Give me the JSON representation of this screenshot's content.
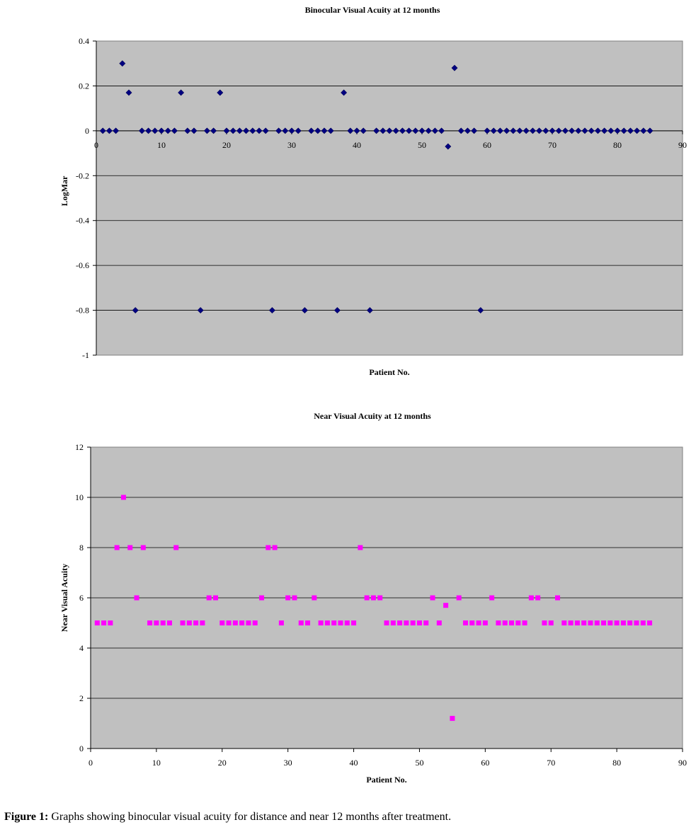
{
  "chart_data": [
    {
      "type": "scatter",
      "title": "Binocular Visual Acuity at 12 months",
      "xlabel": "Patient No.",
      "ylabel": "LogMar",
      "xlim": [
        0,
        90
      ],
      "ylim": [
        -1,
        0.4
      ],
      "xticks": [
        0,
        10,
        20,
        30,
        40,
        50,
        60,
        70,
        80,
        90
      ],
      "yticks": [
        0.4,
        0.2,
        0,
        -0.2,
        -0.4,
        -0.6,
        -0.8,
        -1
      ],
      "xtick_labels": [
        "0",
        "10",
        "20",
        "30",
        "40",
        "50",
        "60",
        "70",
        "80",
        "90"
      ],
      "ytick_labels": [
        "0.4",
        "0.2",
        "0",
        "-0.2",
        "-0.4",
        "-0.6",
        "-0.8",
        "-1"
      ],
      "grid": true,
      "marker": "diamond",
      "color": "#000080",
      "background": "#c0c0c0",
      "x": [
        1,
        2,
        3,
        4,
        5,
        6,
        7,
        8,
        9,
        10,
        11,
        12,
        13,
        14,
        15,
        16,
        17,
        18,
        19,
        20,
        21,
        22,
        23,
        24,
        25,
        26,
        27,
        28,
        29,
        30,
        31,
        32,
        33,
        34,
        35,
        36,
        37,
        38,
        39,
        40,
        41,
        42,
        43,
        44,
        45,
        46,
        47,
        48,
        49,
        50,
        51,
        52,
        53,
        54,
        55,
        56,
        57,
        58,
        59,
        60,
        61,
        62,
        63,
        64,
        65,
        66,
        67,
        68,
        69,
        70,
        71,
        72,
        73,
        74,
        75,
        76,
        77,
        78,
        79,
        80,
        81,
        82,
        83,
        84,
        85
      ],
      "y": [
        0,
        0,
        0,
        0.3,
        0.17,
        -0.8,
        0,
        0,
        0,
        0,
        0,
        0,
        0.17,
        0,
        0,
        -0.8,
        0,
        0,
        0.17,
        0,
        0,
        0,
        0,
        0,
        0,
        0,
        -0.8,
        0,
        0,
        0,
        0,
        -0.8,
        0,
        0,
        0,
        0,
        -0.8,
        0.17,
        0,
        0,
        0,
        -0.8,
        0,
        0,
        0,
        0,
        0,
        0,
        0,
        0,
        0,
        0,
        0,
        -0.07,
        0.28,
        0,
        0,
        0,
        -0.8,
        0,
        0,
        0,
        0,
        0,
        0,
        0,
        0,
        0,
        0,
        0,
        0,
        0,
        0,
        0,
        0,
        0,
        0,
        0,
        0,
        0,
        0,
        0,
        0,
        0,
        0
      ]
    },
    {
      "type": "scatter",
      "title": "Near Visual Acuity at 12 months",
      "xlabel": "Patient No.",
      "ylabel": "Near Visual Acuity",
      "xlim": [
        0,
        90
      ],
      "ylim": [
        0,
        12
      ],
      "xticks": [
        0,
        10,
        20,
        30,
        40,
        50,
        60,
        70,
        80,
        90
      ],
      "yticks": [
        12,
        10,
        8,
        6,
        4,
        2,
        0
      ],
      "xtick_labels": [
        "0",
        "10",
        "20",
        "30",
        "40",
        "50",
        "60",
        "70",
        "80",
        "90"
      ],
      "ytick_labels": [
        "12",
        "10",
        "8",
        "6",
        "4",
        "2",
        "0"
      ],
      "grid": true,
      "marker": "square",
      "color": "#ff00ff",
      "background": "#c0c0c0",
      "x": [
        1,
        2,
        3,
        4,
        5,
        6,
        7,
        8,
        9,
        10,
        11,
        12,
        13,
        14,
        15,
        16,
        17,
        18,
        19,
        20,
        21,
        22,
        23,
        24,
        25,
        26,
        27,
        28,
        29,
        30,
        31,
        32,
        33,
        34,
        35,
        36,
        37,
        38,
        39,
        40,
        41,
        42,
        43,
        44,
        45,
        46,
        47,
        48,
        49,
        50,
        51,
        52,
        53,
        54,
        55,
        56,
        57,
        58,
        59,
        60,
        61,
        62,
        63,
        64,
        65,
        66,
        67,
        68,
        69,
        70,
        71,
        72,
        73,
        74,
        75,
        76,
        77,
        78,
        79,
        80,
        81,
        82,
        83,
        84,
        85
      ],
      "y": [
        5,
        5,
        5,
        8,
        10,
        8,
        6,
        8,
        5,
        5,
        5,
        5,
        8,
        5,
        5,
        5,
        5,
        6,
        6,
        5,
        5,
        5,
        5,
        5,
        5,
        6,
        8,
        8,
        5,
        6,
        6,
        5,
        5,
        6,
        5,
        5,
        5,
        5,
        5,
        5,
        8,
        6,
        6,
        6,
        5,
        5,
        5,
        5,
        5,
        5,
        5,
        6,
        5,
        5.7,
        1.2,
        6,
        5,
        5,
        5,
        5,
        6,
        5,
        5,
        5,
        5,
        5,
        6,
        6,
        5,
        5,
        6,
        5,
        5,
        5,
        5,
        5,
        5,
        5,
        5,
        5,
        5,
        5,
        5,
        5,
        5
      ]
    }
  ],
  "caption": {
    "label": "Figure 1:",
    "text": " Graphs showing binocular visual acuity for distance and near 12 months after treatment."
  }
}
